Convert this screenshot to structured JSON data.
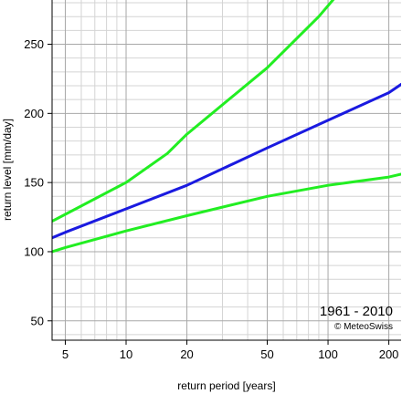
{
  "chart_data": {
    "type": "line",
    "xlabel": "return period [years]",
    "ylabel": "return level [mm/day]",
    "x_scale": "log",
    "xlim": [
      4.3,
      230
    ],
    "ylim": [
      36,
      282
    ],
    "x_ticks": [
      5,
      10,
      20,
      50,
      100,
      200
    ],
    "x_tick_labels": [
      "5",
      "10",
      "20",
      "50",
      "100",
      "200"
    ],
    "y_ticks": [
      50,
      100,
      150,
      200,
      250
    ],
    "y_tick_labels": [
      "50",
      "100",
      "150",
      "200",
      "250"
    ],
    "x_minor_gridlines": [
      6,
      7,
      8,
      9,
      30,
      40,
      60,
      70,
      80,
      90,
      300
    ],
    "y_minor_gridlines": [
      40,
      60,
      70,
      80,
      90,
      110,
      120,
      130,
      140,
      160,
      170,
      180,
      190,
      210,
      220,
      230,
      240,
      260,
      270,
      280
    ],
    "grid": true,
    "annotations": {
      "period": "1961 - 2010",
      "credit": "© MeteoSwiss"
    },
    "series": [
      {
        "role": "estimate",
        "color": "#1a1ae0",
        "x": [
          4.3,
          5,
          10,
          20,
          50,
          100,
          200,
          230
        ],
        "y": [
          110,
          114,
          131,
          148,
          175,
          195,
          215,
          221
        ]
      },
      {
        "role": "upper-bound",
        "color": "#22ee22",
        "x": [
          4.3,
          5,
          10,
          16,
          20,
          50,
          90,
          110
        ],
        "y": [
          122,
          127,
          150,
          171,
          185,
          233,
          270,
          285
        ]
      },
      {
        "role": "lower-bound",
        "color": "#22ee22",
        "x": [
          4.3,
          5,
          10,
          20,
          50,
          100,
          200,
          230
        ],
        "y": [
          100,
          103,
          115,
          126,
          140,
          148,
          154,
          156
        ]
      }
    ]
  }
}
